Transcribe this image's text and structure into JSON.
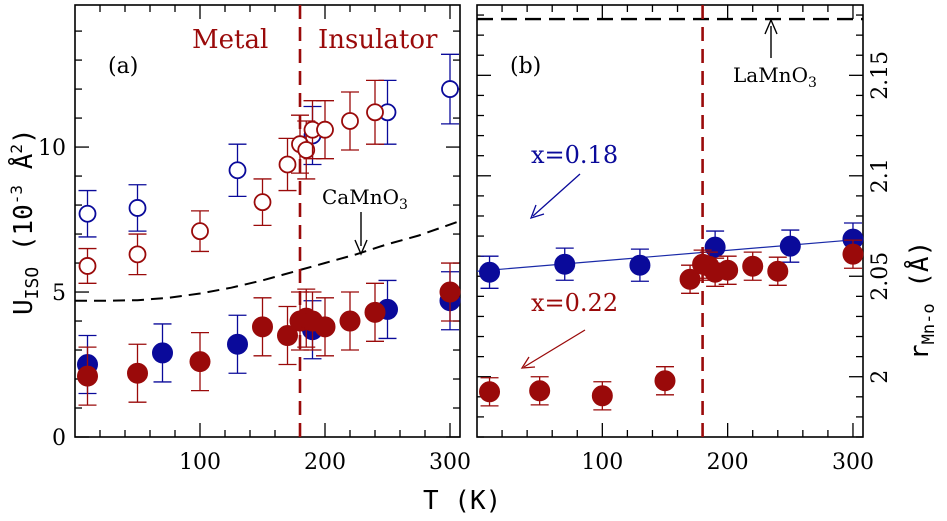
{
  "chart_data": [
    {
      "panel_label": "(a)",
      "type": "scatter",
      "title": "",
      "xlabel": "T (K)",
      "ylabel_parts": {
        "main": "U",
        "sub": "ISO",
        "rest": " (10",
        "sup": "-3",
        "unit": " Å",
        "unit_sup": "2",
        "close": ")"
      },
      "xlim": [
        0,
        308
      ],
      "ylim": [
        0,
        14.9
      ],
      "xticks": [
        100,
        200,
        300
      ],
      "xtick_labels": [
        "100",
        "200",
        "300"
      ],
      "yticks": [
        0,
        5,
        10
      ],
      "ytick_labels": [
        "0",
        "5",
        "10"
      ],
      "regions": {
        "left": "Metal",
        "right": "Insulator",
        "boundary_T": 180
      },
      "annotation": {
        "text": "CaMnO",
        "sub": "3"
      },
      "series": [
        {
          "name": "blue open",
          "color": "#0a0a9a",
          "filled": false,
          "x": [
            10,
            50,
            130,
            190,
            250,
            300
          ],
          "y": [
            7.7,
            7.9,
            9.2,
            10.4,
            11.2,
            12.0
          ],
          "err": [
            0.8,
            0.8,
            0.9,
            1.0,
            1.1,
            1.2
          ]
        },
        {
          "name": "red open",
          "color": "#9a0a0a",
          "filled": false,
          "x": [
            10,
            50,
            100,
            150,
            170,
            180,
            185,
            190,
            200,
            220,
            240
          ],
          "y": [
            5.9,
            6.3,
            7.1,
            8.1,
            9.4,
            10.1,
            9.9,
            10.6,
            10.6,
            10.9,
            11.2
          ],
          "err": [
            0.6,
            0.7,
            0.7,
            0.8,
            0.9,
            1.0,
            1.0,
            1.0,
            1.0,
            1.0,
            1.1
          ]
        },
        {
          "name": "blue filled",
          "color": "#0a0a9a",
          "filled": true,
          "x": [
            10,
            70,
            130,
            190,
            250,
            300
          ],
          "y": [
            2.5,
            2.9,
            3.2,
            3.7,
            4.4,
            4.7
          ],
          "err": [
            1.0,
            1.0,
            1.0,
            1.0,
            1.0,
            1.0
          ]
        },
        {
          "name": "red filled",
          "color": "#9a0a0a",
          "filled": true,
          "x": [
            10,
            50,
            100,
            150,
            170,
            180,
            185,
            190,
            200,
            220,
            240,
            300
          ],
          "y": [
            2.1,
            2.2,
            2.6,
            3.8,
            3.5,
            4.0,
            4.1,
            4.0,
            3.8,
            4.0,
            4.3,
            5.0
          ],
          "err": [
            1.0,
            1.0,
            1.0,
            1.0,
            1.0,
            1.0,
            1.0,
            1.0,
            1.0,
            1.0,
            1.0,
            1.0
          ]
        }
      ],
      "reference_curve": {
        "name": "CaMnO3",
        "style": "dashed",
        "x": [
          0,
          25,
          50,
          75,
          100,
          125,
          150,
          175,
          200,
          225,
          250,
          275,
          308
        ],
        "y": [
          4.7,
          4.7,
          4.72,
          4.8,
          4.95,
          5.15,
          5.4,
          5.7,
          6.0,
          6.3,
          6.65,
          6.95,
          7.45
        ]
      }
    },
    {
      "panel_label": "(b)",
      "type": "scatter",
      "title": "",
      "xlabel": "T (K)",
      "ylabel_parts": {
        "main": "r",
        "sub": "Mn-o",
        "rest": " (Å)"
      },
      "xlim": [
        0,
        308
      ],
      "ylim": [
        1.97,
        2.185
      ],
      "xticks": [
        100,
        200,
        300
      ],
      "xtick_labels": [
        "100",
        "200",
        "300"
      ],
      "yticks": [
        2.0,
        2.05,
        2.1,
        2.15
      ],
      "ytick_labels": [
        "2",
        "2.05",
        "2.1",
        "2.15"
      ],
      "boundary_T": 180,
      "reference_line": {
        "name": "LaMnO3",
        "y": 2.178,
        "label": "LaMnO",
        "sub": "3"
      },
      "annotations": [
        {
          "text": "x=0.18",
          "color": "#0a0a9a"
        },
        {
          "text": "x=0.22",
          "color": "#9a0a0a"
        }
      ],
      "series": [
        {
          "name": "x=0.18",
          "color": "#0a0a9a",
          "filled": true,
          "x": [
            10,
            70,
            130,
            190,
            250,
            300
          ],
          "y": [
            2.052,
            2.056,
            2.0555,
            2.0645,
            2.065,
            2.0685
          ],
          "err": [
            0.008,
            0.008,
            0.008,
            0.008,
            0.008,
            0.008
          ]
        },
        {
          "name": "x=0.22",
          "color": "#9a0a0a",
          "filled": true,
          "x": [
            10,
            50,
            100,
            150,
            170,
            180,
            185,
            190,
            200,
            220,
            240,
            300
          ],
          "y": [
            1.9925,
            1.993,
            1.9905,
            1.998,
            2.0485,
            2.056,
            2.055,
            2.052,
            2.053,
            2.055,
            2.0525,
            2.061
          ],
          "err": [
            0.007,
            0.007,
            0.007,
            0.007,
            0.007,
            0.007,
            0.007,
            0.007,
            0.007,
            0.007,
            0.007,
            0.007
          ]
        }
      ],
      "fit_line": {
        "series": "x=0.18",
        "x": [
          0,
          308
        ],
        "y": [
          2.0525,
          2.0685
        ]
      }
    }
  ]
}
